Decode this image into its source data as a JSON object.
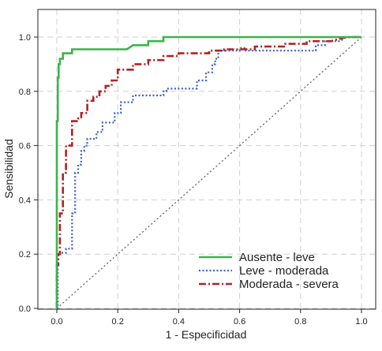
{
  "chart_data": {
    "type": "line",
    "xlabel": "1 - Especificidad",
    "ylabel": "Sensibilidad",
    "xlim": [
      0,
      1
    ],
    "ylim": [
      0,
      1
    ],
    "x_ticks": [
      "0.0",
      "0.2",
      "0.4",
      "0.6",
      "0.8",
      "1.0"
    ],
    "y_ticks": [
      "0.0",
      "0.2",
      "0.4",
      "0.6",
      "0.8",
      "1.0"
    ],
    "grid": true,
    "legend_position": "bottom-right",
    "reference_line": {
      "style": "dotted",
      "color": "#555555",
      "from": [
        0,
        0
      ],
      "to": [
        1,
        1
      ]
    },
    "series": [
      {
        "name": "Ausente - leve",
        "color": "#3cb44b",
        "style": "solid",
        "x": [
          0.0,
          0.0,
          0.003,
          0.003,
          0.006,
          0.006,
          0.01,
          0.01,
          0.02,
          0.02,
          0.05,
          0.05,
          0.23,
          0.25,
          0.3,
          0.3,
          0.35,
          0.35,
          0.9,
          0.95,
          1.0
        ],
        "y": [
          0.0,
          0.69,
          0.69,
          0.85,
          0.85,
          0.9,
          0.9,
          0.92,
          0.92,
          0.94,
          0.94,
          0.955,
          0.955,
          0.97,
          0.97,
          0.985,
          0.985,
          1.0,
          1.0,
          1.0,
          1.0
        ]
      },
      {
        "name": "Leve - moderada",
        "color": "#3a5fcd",
        "style": "dotted",
        "x": [
          0.0,
          0.003,
          0.003,
          0.01,
          0.01,
          0.03,
          0.03,
          0.05,
          0.05,
          0.06,
          0.06,
          0.07,
          0.07,
          0.08,
          0.08,
          0.09,
          0.09,
          0.1,
          0.1,
          0.13,
          0.13,
          0.15,
          0.15,
          0.19,
          0.19,
          0.21,
          0.21,
          0.25,
          0.25,
          0.35,
          0.35,
          0.36,
          0.36,
          0.46,
          0.46,
          0.49,
          0.49,
          0.51,
          0.51,
          0.52,
          0.52,
          0.53,
          0.53,
          0.6,
          0.6,
          0.62,
          0.62,
          0.85,
          0.85,
          0.88,
          0.88,
          0.93,
          0.95,
          1.0
        ],
        "y": [
          0.0,
          0.0,
          0.2,
          0.2,
          0.205,
          0.205,
          0.22,
          0.22,
          0.35,
          0.35,
          0.5,
          0.5,
          0.53,
          0.53,
          0.58,
          0.58,
          0.6,
          0.6,
          0.625,
          0.625,
          0.65,
          0.65,
          0.685,
          0.685,
          0.72,
          0.72,
          0.76,
          0.76,
          0.785,
          0.785,
          0.8,
          0.8,
          0.81,
          0.81,
          0.84,
          0.84,
          0.87,
          0.87,
          0.9,
          0.9,
          0.92,
          0.92,
          0.95,
          0.95,
          0.96,
          0.96,
          0.95,
          0.95,
          0.97,
          0.97,
          0.985,
          0.985,
          1.0,
          1.0
        ]
      },
      {
        "name": "Moderada - severa",
        "color": "#b22222",
        "style": "dashdot",
        "x": [
          0.0,
          0.0,
          0.005,
          0.005,
          0.01,
          0.01,
          0.02,
          0.02,
          0.03,
          0.03,
          0.05,
          0.05,
          0.07,
          0.07,
          0.08,
          0.08,
          0.1,
          0.1,
          0.12,
          0.12,
          0.14,
          0.14,
          0.16,
          0.16,
          0.18,
          0.18,
          0.2,
          0.2,
          0.25,
          0.25,
          0.3,
          0.3,
          0.35,
          0.35,
          0.4,
          0.4,
          0.5,
          0.5,
          0.55,
          0.55,
          0.65,
          0.65,
          0.75,
          0.75,
          0.82,
          0.82,
          0.9,
          0.95,
          1.0
        ],
        "y": [
          0.0,
          0.16,
          0.16,
          0.2,
          0.2,
          0.35,
          0.35,
          0.5,
          0.5,
          0.6,
          0.6,
          0.69,
          0.69,
          0.7,
          0.7,
          0.72,
          0.72,
          0.765,
          0.765,
          0.78,
          0.78,
          0.8,
          0.8,
          0.82,
          0.82,
          0.84,
          0.84,
          0.88,
          0.88,
          0.9,
          0.9,
          0.915,
          0.915,
          0.93,
          0.93,
          0.94,
          0.94,
          0.95,
          0.95,
          0.955,
          0.955,
          0.965,
          0.965,
          0.975,
          0.975,
          0.985,
          0.985,
          1.0,
          1.0
        ]
      }
    ]
  }
}
